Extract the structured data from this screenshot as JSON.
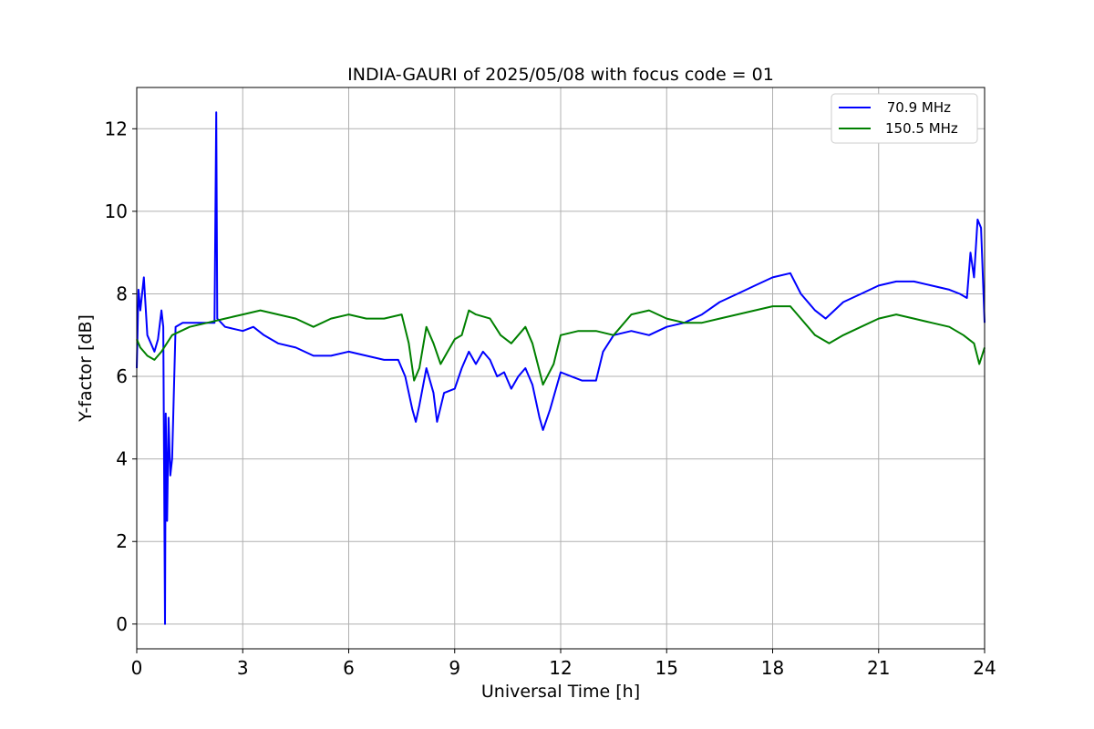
{
  "chart_data": {
    "type": "line",
    "title": "INDIA-GAURI of 2025/05/08 with focus code = 01",
    "xlabel": "Universal Time [h]",
    "ylabel": "Y-factor [dB]",
    "xlim": [
      0,
      24
    ],
    "ylim": [
      -0.6,
      13.0
    ],
    "xticks": [
      0,
      3,
      6,
      9,
      12,
      15,
      18,
      21,
      24
    ],
    "yticks": [
      0,
      2,
      4,
      6,
      8,
      10,
      12
    ],
    "grid": true,
    "legend_position": "top-right",
    "series": [
      {
        "name": " 70.9 MHz",
        "color": "#0000ff",
        "points": [
          [
            0.0,
            6.2
          ],
          [
            0.05,
            8.1
          ],
          [
            0.1,
            7.6
          ],
          [
            0.2,
            8.4
          ],
          [
            0.3,
            7.0
          ],
          [
            0.4,
            6.8
          ],
          [
            0.5,
            6.6
          ],
          [
            0.6,
            6.9
          ],
          [
            0.7,
            7.6
          ],
          [
            0.75,
            7.2
          ],
          [
            0.8,
            0.0
          ],
          [
            0.82,
            5.1
          ],
          [
            0.86,
            2.5
          ],
          [
            0.9,
            5.0
          ],
          [
            0.95,
            3.6
          ],
          [
            1.0,
            4.0
          ],
          [
            1.1,
            7.2
          ],
          [
            1.3,
            7.3
          ],
          [
            1.6,
            7.3
          ],
          [
            2.0,
            7.3
          ],
          [
            2.2,
            7.3
          ],
          [
            2.25,
            12.4
          ],
          [
            2.28,
            7.4
          ],
          [
            2.5,
            7.2
          ],
          [
            3.0,
            7.1
          ],
          [
            3.3,
            7.2
          ],
          [
            3.6,
            7.0
          ],
          [
            4.0,
            6.8
          ],
          [
            4.5,
            6.7
          ],
          [
            5.0,
            6.5
          ],
          [
            5.5,
            6.5
          ],
          [
            6.0,
            6.6
          ],
          [
            6.5,
            6.5
          ],
          [
            7.0,
            6.4
          ],
          [
            7.4,
            6.4
          ],
          [
            7.6,
            6.0
          ],
          [
            7.8,
            5.2
          ],
          [
            7.9,
            4.9
          ],
          [
            8.0,
            5.3
          ],
          [
            8.2,
            6.2
          ],
          [
            8.4,
            5.6
          ],
          [
            8.5,
            4.9
          ],
          [
            8.7,
            5.6
          ],
          [
            9.0,
            5.7
          ],
          [
            9.2,
            6.2
          ],
          [
            9.4,
            6.6
          ],
          [
            9.6,
            6.3
          ],
          [
            9.8,
            6.6
          ],
          [
            10.0,
            6.4
          ],
          [
            10.2,
            6.0
          ],
          [
            10.4,
            6.1
          ],
          [
            10.6,
            5.7
          ],
          [
            10.8,
            6.0
          ],
          [
            11.0,
            6.2
          ],
          [
            11.2,
            5.8
          ],
          [
            11.4,
            5.0
          ],
          [
            11.5,
            4.7
          ],
          [
            11.7,
            5.2
          ],
          [
            12.0,
            6.1
          ],
          [
            12.3,
            6.0
          ],
          [
            12.6,
            5.9
          ],
          [
            13.0,
            5.9
          ],
          [
            13.2,
            6.6
          ],
          [
            13.5,
            7.0
          ],
          [
            14.0,
            7.1
          ],
          [
            14.5,
            7.0
          ],
          [
            15.0,
            7.2
          ],
          [
            15.5,
            7.3
          ],
          [
            16.0,
            7.5
          ],
          [
            16.5,
            7.8
          ],
          [
            17.0,
            8.0
          ],
          [
            17.5,
            8.2
          ],
          [
            18.0,
            8.4
          ],
          [
            18.5,
            8.5
          ],
          [
            18.8,
            8.0
          ],
          [
            19.2,
            7.6
          ],
          [
            19.5,
            7.4
          ],
          [
            20.0,
            7.8
          ],
          [
            20.5,
            8.0
          ],
          [
            21.0,
            8.2
          ],
          [
            21.5,
            8.3
          ],
          [
            22.0,
            8.3
          ],
          [
            22.5,
            8.2
          ],
          [
            23.0,
            8.1
          ],
          [
            23.3,
            8.0
          ],
          [
            23.5,
            7.9
          ],
          [
            23.6,
            9.0
          ],
          [
            23.7,
            8.4
          ],
          [
            23.8,
            9.8
          ],
          [
            23.9,
            9.6
          ],
          [
            24.0,
            7.3
          ]
        ]
      },
      {
        "name": "150.5 MHz",
        "color": "#008000",
        "points": [
          [
            0.0,
            6.9
          ],
          [
            0.1,
            6.7
          ],
          [
            0.2,
            6.6
          ],
          [
            0.3,
            6.5
          ],
          [
            0.5,
            6.4
          ],
          [
            0.7,
            6.6
          ],
          [
            1.0,
            7.0
          ],
          [
            1.5,
            7.2
          ],
          [
            2.0,
            7.3
          ],
          [
            2.5,
            7.4
          ],
          [
            3.0,
            7.5
          ],
          [
            3.5,
            7.6
          ],
          [
            4.0,
            7.5
          ],
          [
            4.5,
            7.4
          ],
          [
            5.0,
            7.2
          ],
          [
            5.5,
            7.4
          ],
          [
            6.0,
            7.5
          ],
          [
            6.5,
            7.4
          ],
          [
            7.0,
            7.4
          ],
          [
            7.5,
            7.5
          ],
          [
            7.7,
            6.8
          ],
          [
            7.85,
            5.9
          ],
          [
            8.0,
            6.2
          ],
          [
            8.2,
            7.2
          ],
          [
            8.4,
            6.8
          ],
          [
            8.6,
            6.3
          ],
          [
            8.8,
            6.6
          ],
          [
            9.0,
            6.9
          ],
          [
            9.2,
            7.0
          ],
          [
            9.4,
            7.6
          ],
          [
            9.6,
            7.5
          ],
          [
            10.0,
            7.4
          ],
          [
            10.3,
            7.0
          ],
          [
            10.6,
            6.8
          ],
          [
            11.0,
            7.2
          ],
          [
            11.2,
            6.8
          ],
          [
            11.5,
            5.8
          ],
          [
            11.8,
            6.3
          ],
          [
            12.0,
            7.0
          ],
          [
            12.5,
            7.1
          ],
          [
            13.0,
            7.1
          ],
          [
            13.5,
            7.0
          ],
          [
            14.0,
            7.5
          ],
          [
            14.5,
            7.6
          ],
          [
            15.0,
            7.4
          ],
          [
            15.5,
            7.3
          ],
          [
            16.0,
            7.3
          ],
          [
            16.5,
            7.4
          ],
          [
            17.0,
            7.5
          ],
          [
            17.5,
            7.6
          ],
          [
            18.0,
            7.7
          ],
          [
            18.5,
            7.7
          ],
          [
            18.8,
            7.4
          ],
          [
            19.2,
            7.0
          ],
          [
            19.6,
            6.8
          ],
          [
            20.0,
            7.0
          ],
          [
            20.5,
            7.2
          ],
          [
            21.0,
            7.4
          ],
          [
            21.5,
            7.5
          ],
          [
            22.0,
            7.4
          ],
          [
            22.5,
            7.3
          ],
          [
            23.0,
            7.2
          ],
          [
            23.4,
            7.0
          ],
          [
            23.7,
            6.8
          ],
          [
            23.85,
            6.3
          ],
          [
            24.0,
            6.7
          ]
        ]
      }
    ]
  }
}
